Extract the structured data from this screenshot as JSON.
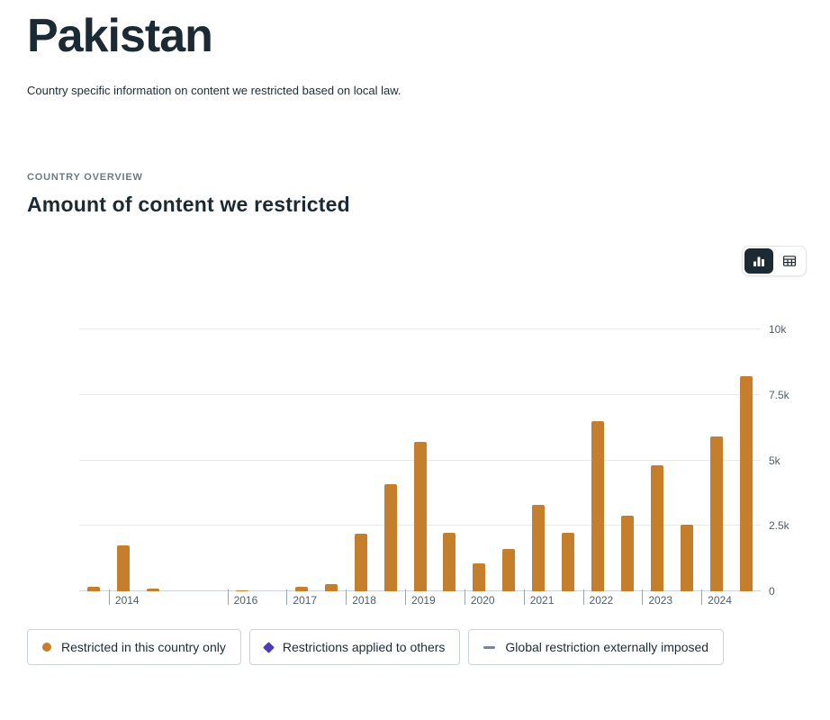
{
  "page": {
    "title": "Pakistan",
    "subtitle": "Country specific information on content we restricted based on local law.",
    "section_label": "COUNTRY OVERVIEW",
    "section_title": "Amount of content we restricted"
  },
  "view_toggle": {
    "options": [
      {
        "name": "chart-view",
        "icon": "bar-chart-icon",
        "active": true
      },
      {
        "name": "table-view",
        "icon": "table-icon",
        "active": false
      }
    ],
    "active_background": "#1c2b33"
  },
  "chart_data": {
    "type": "bar",
    "title": "Amount of content we restricted",
    "ylim": [
      0,
      10000
    ],
    "grid": true,
    "y_axis_side": "right",
    "y_ticks": [
      {
        "value": 0,
        "label": "0"
      },
      {
        "value": 2500,
        "label": "2.5k"
      },
      {
        "value": 5000,
        "label": "5k"
      },
      {
        "value": 7500,
        "label": "7.5k"
      },
      {
        "value": 10000,
        "label": "10k"
      }
    ],
    "x_slots": 23,
    "x_slot_description": "half-year reporting periods from H2 2013 to H2 2024; year label shown under first period of labeled year",
    "x_ticks": [
      {
        "slot": 1,
        "label": "2014"
      },
      {
        "slot": 5,
        "label": "2016"
      },
      {
        "slot": 7,
        "label": "2017"
      },
      {
        "slot": 9,
        "label": "2018"
      },
      {
        "slot": 11,
        "label": "2019"
      },
      {
        "slot": 13,
        "label": "2020"
      },
      {
        "slot": 15,
        "label": "2021"
      },
      {
        "slot": 17,
        "label": "2022"
      },
      {
        "slot": 19,
        "label": "2023"
      },
      {
        "slot": 21,
        "label": "2024"
      }
    ],
    "series": [
      {
        "name": "Restricted in this country only",
        "color": "#c57e2c",
        "values": [
          160,
          1770,
          90,
          0,
          0,
          30,
          0,
          160,
          290,
          2200,
          4100,
          5700,
          2250,
          1050,
          1600,
          3300,
          2250,
          6500,
          2900,
          4800,
          2550,
          5900,
          8200
        ]
      },
      {
        "name": "Restrictions applied to others",
        "color": "#4a3bb8",
        "values": []
      },
      {
        "name": "Global restriction externally imposed",
        "color": "#7a8691",
        "values": []
      }
    ],
    "legend_position": "bottom"
  },
  "legend": {
    "items": [
      {
        "label": "Restricted in this country only",
        "marker": "circle",
        "color": "#c57e2c"
      },
      {
        "label": "Restrictions applied to others",
        "marker": "diamond",
        "color": "#4a3bb8"
      },
      {
        "label": "Global restriction externally imposed",
        "marker": "dash",
        "color": "#7a8691"
      }
    ]
  }
}
